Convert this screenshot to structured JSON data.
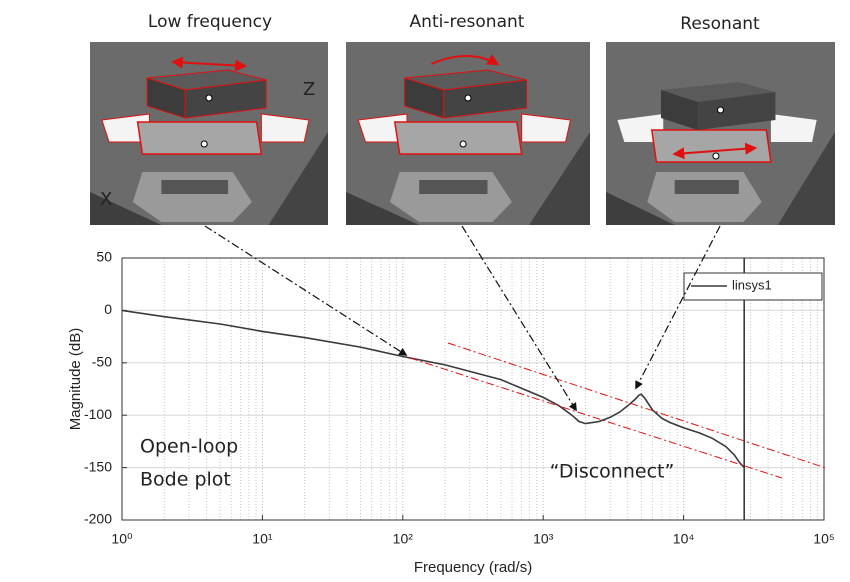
{
  "chart_data": {
    "type": "line",
    "image_labels": [
      "Low frequency",
      "Anti-resonant",
      "Resonant"
    ],
    "annotations": [
      "Z",
      "X",
      "Open-loop",
      "Bode plot",
      "“Disconnect”"
    ],
    "xlabel": "Frequency  (rad/s)",
    "ylabel": "Magnitude (dB)",
    "x": [
      1,
      2,
      5,
      10,
      20,
      50,
      100,
      200,
      500,
      1000,
      1300,
      1600,
      1800,
      2000,
      2500,
      3000,
      3500,
      4000,
      4500,
      4800,
      5000,
      5300,
      6000,
      7000,
      8000,
      10000,
      13000,
      16000,
      20000,
      23000,
      25000,
      27000,
      27000,
      27000
    ],
    "series": [
      {
        "name": "linsys1",
        "color": "#3a3a3a",
        "values": [
          0,
          -6,
          -13,
          -20,
          -26,
          -35,
          -44,
          -52,
          -66,
          -83,
          -91,
          -100,
          -106,
          -108,
          -106,
          -102,
          -97,
          -91,
          -85,
          -81,
          -80,
          -84,
          -95,
          -103,
          -107,
          -112,
          -117,
          -122,
          -130,
          -138,
          -145,
          -150,
          -200,
          50
        ]
      }
    ],
    "xscale": "log",
    "xlim": [
      1,
      100000
    ],
    "ylim": [
      -200,
      50
    ],
    "xticks": [
      {
        "value": 1,
        "label": "10⁰"
      },
      {
        "value": 10,
        "label": "10¹"
      },
      {
        "value": 100,
        "label": "10²"
      },
      {
        "value": 1000,
        "label": "10³"
      },
      {
        "value": 10000,
        "label": "10⁴"
      },
      {
        "value": 100000,
        "label": "10⁵"
      }
    ],
    "yticks": [
      50,
      0,
      -50,
      -100,
      -150,
      -200
    ],
    "grid": true,
    "legend": "upper right"
  }
}
